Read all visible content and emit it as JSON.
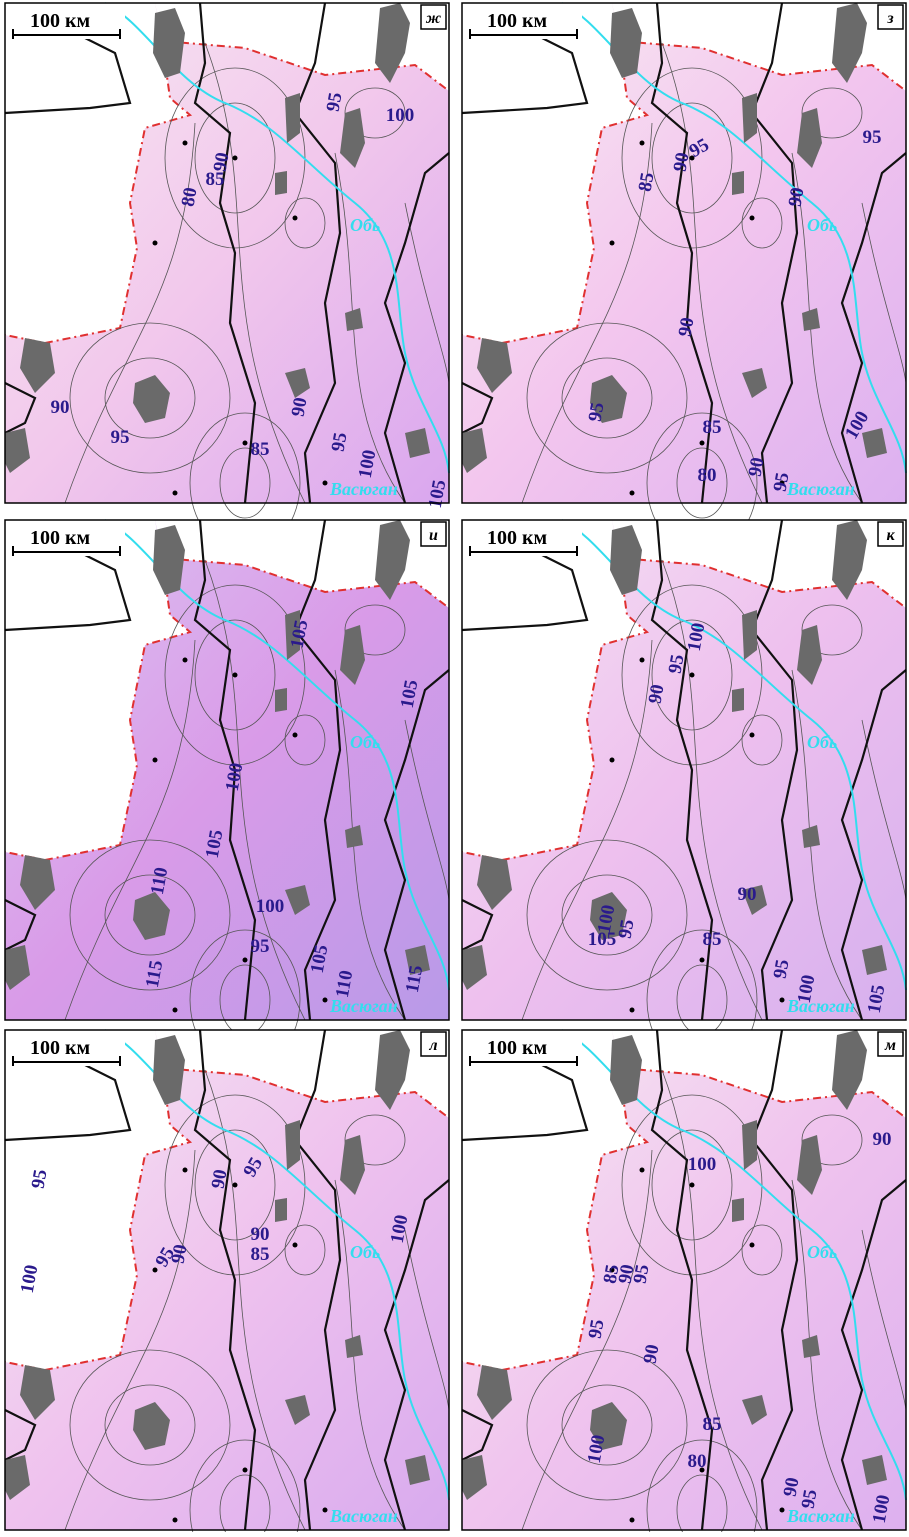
{
  "panels": [
    {
      "letter": "ж",
      "scale_label": "100 км",
      "rivers": [
        "Обь",
        "Васюган"
      ],
      "contour_labels": [
        80,
        85,
        90,
        95,
        100,
        90,
        95,
        85,
        90,
        95,
        100,
        105
      ]
    },
    {
      "letter": "з",
      "scale_label": "100 км",
      "rivers": [
        "Обь",
        "Васюган"
      ],
      "contour_labels": [
        85,
        90,
        95,
        95,
        90,
        90,
        95,
        85,
        80,
        90,
        95,
        100
      ]
    },
    {
      "letter": "и",
      "scale_label": "100 км",
      "rivers": [
        "Обь",
        "Васюган"
      ],
      "contour_labels": [
        105,
        105,
        100,
        105,
        110,
        100,
        115,
        95,
        105,
        110,
        115
      ]
    },
    {
      "letter": "к",
      "scale_label": "100 км",
      "rivers": [
        "Обь",
        "Васюган"
      ],
      "contour_labels": [
        100,
        95,
        90,
        90,
        105,
        100,
        95,
        85,
        95,
        100,
        105
      ]
    },
    {
      "letter": "л",
      "scale_label": "100 км",
      "rivers": [
        "Обь",
        "Васюган"
      ],
      "contour_labels": [
        90,
        95,
        90,
        95,
        95,
        90,
        85,
        100,
        100
      ]
    },
    {
      "letter": "м",
      "scale_label": "100 км",
      "rivers": [
        "Обь",
        "Васюган"
      ],
      "contour_labels": [
        85,
        90,
        95,
        100,
        90,
        90,
        95,
        100,
        85,
        80,
        90,
        95,
        100
      ]
    }
  ]
}
